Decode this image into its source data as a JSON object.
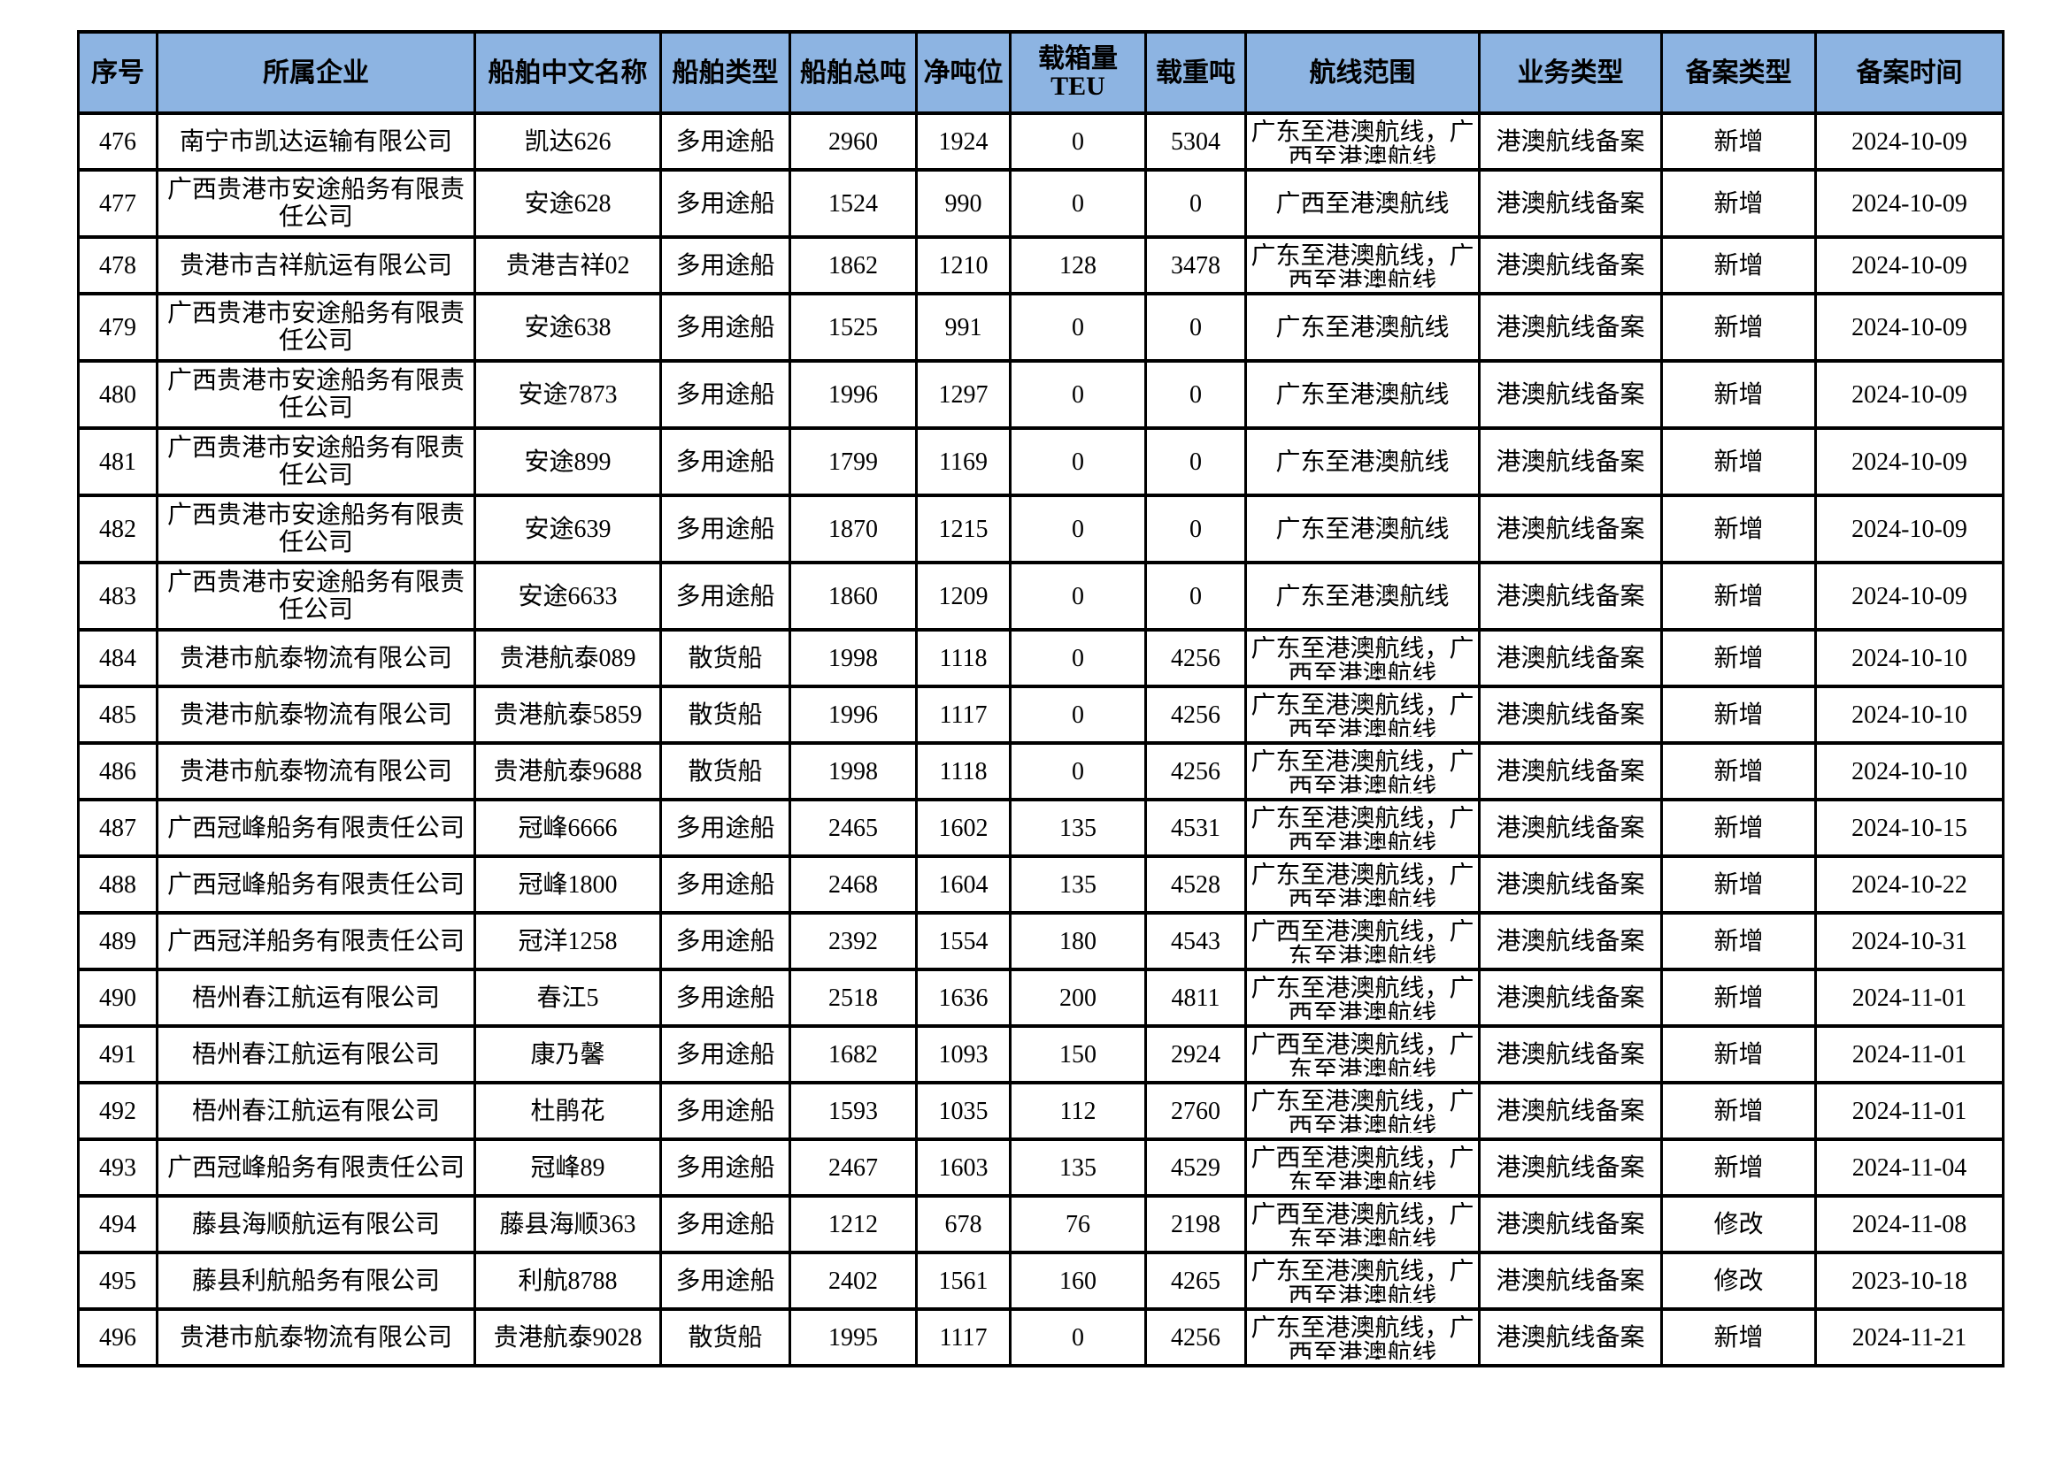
{
  "colors": {
    "header_bg": "#8DB4E2",
    "border": "#000000",
    "text": "#000000",
    "page_bg": "#FFFFFF"
  },
  "table": {
    "columns": [
      {
        "key": "seq",
        "label": "序号"
      },
      {
        "key": "company",
        "label": "所属企业"
      },
      {
        "key": "ship",
        "label": "船舶中文名称"
      },
      {
        "key": "type",
        "label": "船舶类型"
      },
      {
        "key": "gross",
        "label": "船舶总吨"
      },
      {
        "key": "net",
        "label": "净吨位"
      },
      {
        "key": "teu",
        "label": "载箱量TEU"
      },
      {
        "key": "dwt",
        "label": "载重吨"
      },
      {
        "key": "route",
        "label": "航线范围"
      },
      {
        "key": "biz",
        "label": "业务类型"
      },
      {
        "key": "filing",
        "label": "备案类型"
      },
      {
        "key": "date",
        "label": "备案时间"
      }
    ],
    "rows": [
      {
        "seq": "476",
        "company": "南宁市凯达运输有限公司",
        "ship": "凯达626",
        "type": "多用途船",
        "gross": "2960",
        "net": "1924",
        "teu": "0",
        "dwt": "5304",
        "route": "广东至港澳航线，广西至港澳航线",
        "biz": "港澳航线备案",
        "filing": "新增",
        "date": "2024-10-09"
      },
      {
        "seq": "477",
        "company": "广西贵港市安途船务有限责任公司",
        "ship": "安途628",
        "type": "多用途船",
        "gross": "1524",
        "net": "990",
        "teu": "0",
        "dwt": "0",
        "route": "广西至港澳航线",
        "biz": "港澳航线备案",
        "filing": "新增",
        "date": "2024-10-09"
      },
      {
        "seq": "478",
        "company": "贵港市吉祥航运有限公司",
        "ship": "贵港吉祥02",
        "type": "多用途船",
        "gross": "1862",
        "net": "1210",
        "teu": "128",
        "dwt": "3478",
        "route": "广东至港澳航线，广西至港澳航线",
        "biz": "港澳航线备案",
        "filing": "新增",
        "date": "2024-10-09"
      },
      {
        "seq": "479",
        "company": "广西贵港市安途船务有限责任公司",
        "ship": "安途638",
        "type": "多用途船",
        "gross": "1525",
        "net": "991",
        "teu": "0",
        "dwt": "0",
        "route": "广东至港澳航线",
        "biz": "港澳航线备案",
        "filing": "新增",
        "date": "2024-10-09"
      },
      {
        "seq": "480",
        "company": "广西贵港市安途船务有限责任公司",
        "ship": "安途7873",
        "type": "多用途船",
        "gross": "1996",
        "net": "1297",
        "teu": "0",
        "dwt": "0",
        "route": "广东至港澳航线",
        "biz": "港澳航线备案",
        "filing": "新增",
        "date": "2024-10-09"
      },
      {
        "seq": "481",
        "company": "广西贵港市安途船务有限责任公司",
        "ship": "安途899",
        "type": "多用途船",
        "gross": "1799",
        "net": "1169",
        "teu": "0",
        "dwt": "0",
        "route": "广东至港澳航线",
        "biz": "港澳航线备案",
        "filing": "新增",
        "date": "2024-10-09"
      },
      {
        "seq": "482",
        "company": "广西贵港市安途船务有限责任公司",
        "ship": "安途639",
        "type": "多用途船",
        "gross": "1870",
        "net": "1215",
        "teu": "0",
        "dwt": "0",
        "route": "广东至港澳航线",
        "biz": "港澳航线备案",
        "filing": "新增",
        "date": "2024-10-09"
      },
      {
        "seq": "483",
        "company": "广西贵港市安途船务有限责任公司",
        "ship": "安途6633",
        "type": "多用途船",
        "gross": "1860",
        "net": "1209",
        "teu": "0",
        "dwt": "0",
        "route": "广东至港澳航线",
        "biz": "港澳航线备案",
        "filing": "新增",
        "date": "2024-10-09"
      },
      {
        "seq": "484",
        "company": "贵港市航泰物流有限公司",
        "ship": "贵港航泰089",
        "type": "散货船",
        "gross": "1998",
        "net": "1118",
        "teu": "0",
        "dwt": "4256",
        "route": "广东至港澳航线，广西至港澳航线",
        "biz": "港澳航线备案",
        "filing": "新增",
        "date": "2024-10-10"
      },
      {
        "seq": "485",
        "company": "贵港市航泰物流有限公司",
        "ship": "贵港航泰5859",
        "type": "散货船",
        "gross": "1996",
        "net": "1117",
        "teu": "0",
        "dwt": "4256",
        "route": "广东至港澳航线，广西至港澳航线",
        "biz": "港澳航线备案",
        "filing": "新增",
        "date": "2024-10-10"
      },
      {
        "seq": "486",
        "company": "贵港市航泰物流有限公司",
        "ship": "贵港航泰9688",
        "type": "散货船",
        "gross": "1998",
        "net": "1118",
        "teu": "0",
        "dwt": "4256",
        "route": "广东至港澳航线，广西至港澳航线",
        "biz": "港澳航线备案",
        "filing": "新增",
        "date": "2024-10-10"
      },
      {
        "seq": "487",
        "company": "广西冠峰船务有限责任公司",
        "ship": "冠峰6666",
        "type": "多用途船",
        "gross": "2465",
        "net": "1602",
        "teu": "135",
        "dwt": "4531",
        "route": "广东至港澳航线，广西至港澳航线",
        "biz": "港澳航线备案",
        "filing": "新增",
        "date": "2024-10-15"
      },
      {
        "seq": "488",
        "company": "广西冠峰船务有限责任公司",
        "ship": "冠峰1800",
        "type": "多用途船",
        "gross": "2468",
        "net": "1604",
        "teu": "135",
        "dwt": "4528",
        "route": "广东至港澳航线，广西至港澳航线",
        "biz": "港澳航线备案",
        "filing": "新增",
        "date": "2024-10-22"
      },
      {
        "seq": "489",
        "company": "广西冠洋船务有限责任公司",
        "ship": "冠洋1258",
        "type": "多用途船",
        "gross": "2392",
        "net": "1554",
        "teu": "180",
        "dwt": "4543",
        "route": "广西至港澳航线，广东至港澳航线",
        "biz": "港澳航线备案",
        "filing": "新增",
        "date": "2024-10-31"
      },
      {
        "seq": "490",
        "company": "梧州春江航运有限公司",
        "ship": "春江5",
        "type": "多用途船",
        "gross": "2518",
        "net": "1636",
        "teu": "200",
        "dwt": "4811",
        "route": "广东至港澳航线，广西至港澳航线",
        "biz": "港澳航线备案",
        "filing": "新增",
        "date": "2024-11-01"
      },
      {
        "seq": "491",
        "company": "梧州春江航运有限公司",
        "ship": "康乃馨",
        "type": "多用途船",
        "gross": "1682",
        "net": "1093",
        "teu": "150",
        "dwt": "2924",
        "route": "广西至港澳航线，广东至港澳航线",
        "biz": "港澳航线备案",
        "filing": "新增",
        "date": "2024-11-01"
      },
      {
        "seq": "492",
        "company": "梧州春江航运有限公司",
        "ship": "杜鹃花",
        "type": "多用途船",
        "gross": "1593",
        "net": "1035",
        "teu": "112",
        "dwt": "2760",
        "route": "广东至港澳航线，广西至港澳航线",
        "biz": "港澳航线备案",
        "filing": "新增",
        "date": "2024-11-01"
      },
      {
        "seq": "493",
        "company": "广西冠峰船务有限责任公司",
        "ship": "冠峰89",
        "type": "多用途船",
        "gross": "2467",
        "net": "1603",
        "teu": "135",
        "dwt": "4529",
        "route": "广西至港澳航线，广东至港澳航线",
        "biz": "港澳航线备案",
        "filing": "新增",
        "date": "2024-11-04"
      },
      {
        "seq": "494",
        "company": "藤县海顺航运有限公司",
        "ship": "藤县海顺363",
        "type": "多用途船",
        "gross": "1212",
        "net": "678",
        "teu": "76",
        "dwt": "2198",
        "route": "广西至港澳航线，广东至港澳航线",
        "biz": "港澳航线备案",
        "filing": "修改",
        "date": "2024-11-08"
      },
      {
        "seq": "495",
        "company": "藤县利航船务有限公司",
        "ship": "利航8788",
        "type": "多用途船",
        "gross": "2402",
        "net": "1561",
        "teu": "160",
        "dwt": "4265",
        "route": "广东至港澳航线，广西至港澳航线",
        "biz": "港澳航线备案",
        "filing": "修改",
        "date": "2023-10-18"
      },
      {
        "seq": "496",
        "company": "贵港市航泰物流有限公司",
        "ship": "贵港航泰9028",
        "type": "散货船",
        "gross": "1995",
        "net": "1117",
        "teu": "0",
        "dwt": "4256",
        "route": "广东至港澳航线，广西至港澳航线",
        "biz": "港澳航线备案",
        "filing": "新增",
        "date": "2024-11-21"
      }
    ]
  }
}
